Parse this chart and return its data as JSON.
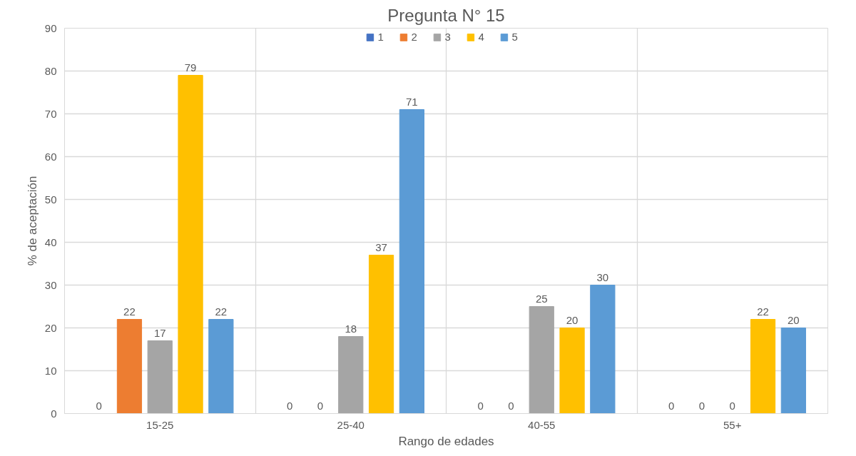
{
  "chart_data": {
    "type": "bar",
    "title": "Pregunta N° 15",
    "xlabel": "Rango de edades",
    "ylabel": "% de aceptación",
    "categories": [
      "15-25",
      "25-40",
      "40-55",
      "55+"
    ],
    "series": [
      {
        "name": "1",
        "color": "#4472c4",
        "values": [
          0,
          0,
          0,
          0
        ]
      },
      {
        "name": "2",
        "color": "#ed7d31",
        "values": [
          22,
          0,
          0,
          0
        ]
      },
      {
        "name": "3",
        "color": "#a5a5a5",
        "values": [
          17,
          18,
          25,
          0
        ]
      },
      {
        "name": "4",
        "color": "#ffc000",
        "values": [
          79,
          37,
          20,
          22
        ]
      },
      {
        "name": "5",
        "color": "#5b9bd5",
        "values": [
          22,
          71,
          30,
          20
        ]
      }
    ],
    "ylim": [
      0,
      90
    ],
    "yticks": [
      0,
      10,
      20,
      30,
      40,
      50,
      60,
      70,
      80,
      90
    ],
    "grid": true,
    "legend": "top",
    "data_labels": true
  }
}
